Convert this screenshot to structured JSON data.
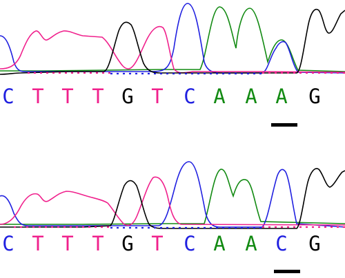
{
  "colors": {
    "C": "#2020e0",
    "T": "#f0208c",
    "G": "#000000",
    "A": "#128a12",
    "marker": "#000000",
    "background": "#ffffff"
  },
  "tracks": [
    {
      "bases": [
        "C",
        "T",
        "T",
        "T",
        "G",
        "T",
        "C",
        "A",
        "A",
        "A",
        "G"
      ],
      "marked_index": 9
    },
    {
      "bases": [
        "C",
        "T",
        "T",
        "T",
        "G",
        "T",
        "C",
        "A",
        "A",
        "C",
        "G"
      ],
      "marked_index": 9
    }
  ]
}
